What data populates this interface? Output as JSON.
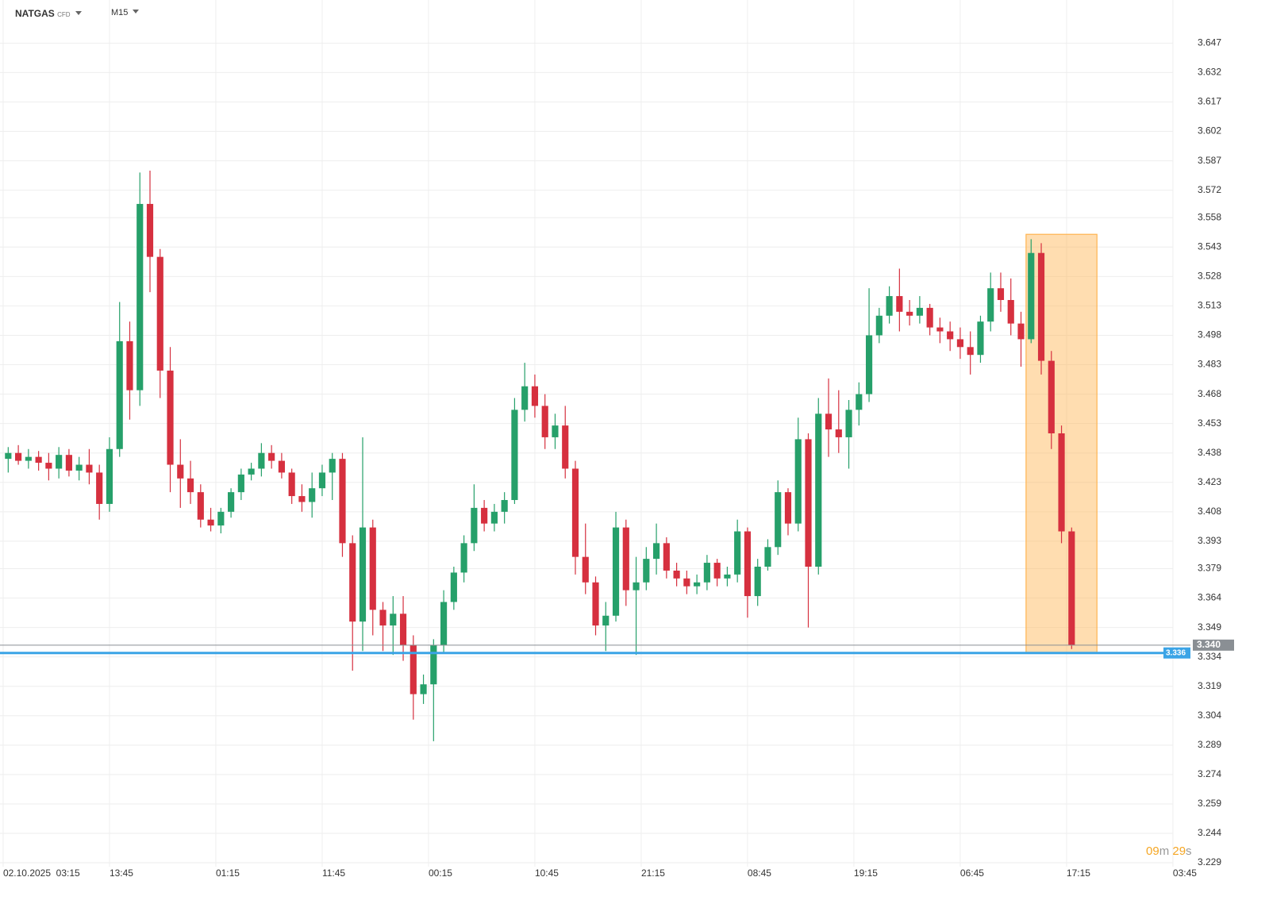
{
  "header": {
    "symbol": "NATGAS",
    "instrument": "CFD",
    "interval": "M15"
  },
  "chart_data": {
    "type": "candlestick",
    "open": [
      3.435,
      3.438,
      3.434,
      3.436,
      3.433,
      3.43,
      3.437,
      3.429,
      3.432,
      3.428,
      3.412,
      3.44,
      3.495,
      3.47,
      3.565,
      3.538,
      3.48,
      3.432,
      3.425,
      3.418,
      3.404,
      3.401,
      3.408,
      3.418,
      3.427,
      3.43,
      3.438,
      3.434,
      3.428,
      3.416,
      3.413,
      3.42,
      3.428,
      3.435,
      3.392,
      3.352,
      3.4,
      3.358,
      3.35,
      3.356,
      3.34,
      3.315,
      3.32,
      3.34,
      3.362,
      3.377,
      3.392,
      3.41,
      3.402,
      3.408,
      3.414,
      3.46,
      3.472,
      3.462,
      3.446,
      3.452,
      3.43,
      3.385,
      3.372,
      3.35,
      3.355,
      3.4,
      3.368,
      3.372,
      3.384,
      3.392,
      3.378,
      3.374,
      3.37,
      3.372,
      3.382,
      3.374,
      3.376,
      3.398,
      3.365,
      3.38,
      3.39,
      3.418,
      3.402,
      3.445,
      3.38,
      3.458,
      3.45,
      3.446,
      3.46,
      3.468,
      3.498,
      3.508,
      3.518,
      3.51,
      3.508,
      3.512,
      3.502,
      3.5,
      3.496,
      3.492,
      3.488,
      3.505,
      3.522,
      3.516,
      3.504,
      3.496,
      3.54,
      3.485,
      3.448,
      3.398
    ],
    "high": [
      3.441,
      3.442,
      3.44,
      3.439,
      3.438,
      3.441,
      3.44,
      3.436,
      3.44,
      3.432,
      3.446,
      3.515,
      3.505,
      3.581,
      3.582,
      3.542,
      3.492,
      3.445,
      3.434,
      3.422,
      3.41,
      3.41,
      3.42,
      3.43,
      3.433,
      3.443,
      3.442,
      3.438,
      3.43,
      3.422,
      3.428,
      3.432,
      3.438,
      3.438,
      3.396,
      3.446,
      3.404,
      3.362,
      3.365,
      3.365,
      3.345,
      3.325,
      3.343,
      3.368,
      3.38,
      3.396,
      3.422,
      3.414,
      3.412,
      3.418,
      3.466,
      3.484,
      3.478,
      3.468,
      3.458,
      3.462,
      3.434,
      3.402,
      3.375,
      3.362,
      3.408,
      3.404,
      3.385,
      3.39,
      3.402,
      3.395,
      3.382,
      3.378,
      3.376,
      3.386,
      3.384,
      3.38,
      3.404,
      3.4,
      3.384,
      3.394,
      3.424,
      3.42,
      3.456,
      3.448,
      3.466,
      3.476,
      3.47,
      3.465,
      3.474,
      3.522,
      3.512,
      3.523,
      3.532,
      3.516,
      3.518,
      3.514,
      3.507,
      3.505,
      3.502,
      3.5,
      3.508,
      3.53,
      3.53,
      3.527,
      3.51,
      3.547,
      3.545,
      3.49,
      3.452,
      3.4
    ],
    "low": [
      3.428,
      3.432,
      3.43,
      3.429,
      3.424,
      3.425,
      3.426,
      3.424,
      3.422,
      3.404,
      3.408,
      3.436,
      3.455,
      3.462,
      3.52,
      3.466,
      3.418,
      3.41,
      3.412,
      3.4,
      3.398,
      3.397,
      3.405,
      3.414,
      3.424,
      3.426,
      3.43,
      3.425,
      3.412,
      3.408,
      3.405,
      3.416,
      3.414,
      3.385,
      3.327,
      3.337,
      3.345,
      3.337,
      3.335,
      3.332,
      3.302,
      3.31,
      3.291,
      3.336,
      3.358,
      3.372,
      3.388,
      3.398,
      3.398,
      3.402,
      3.412,
      3.454,
      3.456,
      3.44,
      3.44,
      3.425,
      3.376,
      3.366,
      3.345,
      3.337,
      3.352,
      3.36,
      3.335,
      3.368,
      3.376,
      3.374,
      3.37,
      3.366,
      3.366,
      3.368,
      3.37,
      3.37,
      3.372,
      3.354,
      3.36,
      3.378,
      3.386,
      3.396,
      3.398,
      3.349,
      3.376,
      3.436,
      3.438,
      3.43,
      3.452,
      3.464,
      3.494,
      3.504,
      3.5,
      3.503,
      3.504,
      3.498,
      3.494,
      3.49,
      3.486,
      3.478,
      3.484,
      3.5,
      3.51,
      3.498,
      3.482,
      3.494,
      3.478,
      3.44,
      3.392,
      3.338
    ],
    "close": [
      3.438,
      3.434,
      3.436,
      3.433,
      3.43,
      3.437,
      3.429,
      3.432,
      3.428,
      3.412,
      3.44,
      3.495,
      3.47,
      3.565,
      3.538,
      3.48,
      3.432,
      3.425,
      3.418,
      3.404,
      3.401,
      3.408,
      3.418,
      3.427,
      3.43,
      3.438,
      3.434,
      3.428,
      3.416,
      3.413,
      3.42,
      3.428,
      3.435,
      3.392,
      3.352,
      3.4,
      3.358,
      3.35,
      3.356,
      3.34,
      3.315,
      3.32,
      3.34,
      3.362,
      3.377,
      3.392,
      3.41,
      3.402,
      3.408,
      3.414,
      3.46,
      3.472,
      3.462,
      3.446,
      3.452,
      3.43,
      3.385,
      3.372,
      3.35,
      3.355,
      3.4,
      3.368,
      3.372,
      3.384,
      3.392,
      3.378,
      3.374,
      3.37,
      3.372,
      3.382,
      3.374,
      3.376,
      3.398,
      3.365,
      3.38,
      3.39,
      3.418,
      3.402,
      3.445,
      3.38,
      3.458,
      3.45,
      3.446,
      3.46,
      3.468,
      3.498,
      3.508,
      3.518,
      3.51,
      3.508,
      3.512,
      3.502,
      3.5,
      3.496,
      3.492,
      3.488,
      3.505,
      3.522,
      3.516,
      3.504,
      3.496,
      3.54,
      3.485,
      3.448,
      3.398,
      3.34
    ],
    "up_color": "#26a06a",
    "down_color": "#d6303f",
    "ylim": [
      3.227,
      3.669
    ],
    "yticks": [
      3.647,
      3.632,
      3.617,
      3.602,
      3.587,
      3.572,
      3.558,
      3.543,
      3.528,
      3.513,
      3.498,
      3.483,
      3.468,
      3.453,
      3.438,
      3.423,
      3.408,
      3.393,
      3.379,
      3.364,
      3.349,
      3.334,
      3.319,
      3.304,
      3.289,
      3.274,
      3.259,
      3.244,
      3.229
    ],
    "xlim": [
      -0.31,
      117.23
    ],
    "xticks": [
      {
        "value": 0,
        "label": "02.10.2025  03:15"
      },
      {
        "value": 10.5,
        "label": "13:45"
      },
      {
        "value": 21,
        "label": "01:15"
      },
      {
        "value": 31.5,
        "label": "11:45"
      },
      {
        "value": 42,
        "label": "00:15"
      },
      {
        "value": 52.5,
        "label": "10:45"
      },
      {
        "value": 63,
        "label": "21:15"
      },
      {
        "value": 73.5,
        "label": "08:45"
      },
      {
        "value": 84,
        "label": "19:15"
      },
      {
        "value": 94.5,
        "label": "06:45"
      },
      {
        "value": 105,
        "label": "17:15"
      },
      {
        "value": 115.5,
        "label": "03:45"
      }
    ],
    "grid": true,
    "lines": [
      {
        "value": 3.34,
        "label": "3.340",
        "color": "#8a8f94",
        "width": 1
      },
      {
        "value": 3.336,
        "label": "3.336",
        "color": "#3ba4e6",
        "width": 3
      }
    ],
    "highlight": {
      "xlim": [
        101,
        108
      ],
      "ylim": [
        3.336,
        3.5495
      ],
      "color": "#ffb450"
    }
  },
  "timer": {
    "minutes": "09",
    "minutes_unit": "m",
    "seconds": "29",
    "seconds_unit": "s"
  }
}
